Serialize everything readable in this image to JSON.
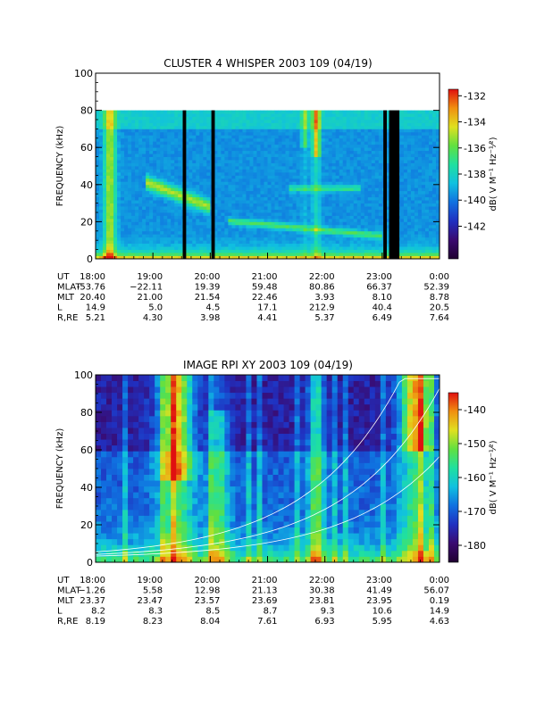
{
  "chart_data": [
    {
      "type": "heatmap",
      "title": "CLUSTER 4 WHISPER 2003 109 (04/19)",
      "ylabel": "FREQUENCY (kHz)",
      "ylim": [
        0,
        100
      ],
      "yticks": [
        "0",
        "20",
        "40",
        "60",
        "80",
        "100"
      ],
      "xlim_hours": [
        18,
        24
      ],
      "xticks": [
        "18:00",
        "19:00",
        "20:00",
        "21:00",
        "22:00",
        "23:00",
        "0:00"
      ],
      "data_ceiling_khz": 80,
      "colorbar": {
        "label": "dB( V M⁻¹ Hz⁻¹⁄²)",
        "ticks": [
          "-132",
          "-134",
          "-136",
          "-138",
          "-140",
          "-142"
        ],
        "tick_values": [
          -132,
          -134,
          -136,
          -138,
          -140,
          -142
        ],
        "range": [
          -144.5,
          -131.5
        ],
        "colors": [
          "#200030",
          "#3a0a70",
          "#2030c0",
          "#1070e0",
          "#10c0e0",
          "#20e0a0",
          "#60e040",
          "#e0e020",
          "#f09010",
          "#e01010"
        ]
      },
      "data_gaps_hours": [
        [
          19.52,
          19.58
        ],
        [
          20.02,
          20.08
        ],
        [
          23.02,
          23.08
        ],
        [
          23.12,
          23.3
        ]
      ],
      "ephemeris": {
        "rows": [
          {
            "label": "UT",
            "values": [
              "18:00",
              "19:00",
              "20:00",
              "21:00",
              "22:00",
              "23:00",
              "0:00"
            ]
          },
          {
            "label": "MLAT",
            "values": [
              "-53.76",
              "−22.11",
              "19.39",
              "59.48",
              "80.86",
              "66.37",
              "52.39"
            ]
          },
          {
            "label": "MLT",
            "values": [
              "20.40",
              "21.00",
              "21.54",
              "22.46",
              "3.93",
              "8.10",
              "8.78"
            ]
          },
          {
            "label": "L",
            "values": [
              "14.9",
              "5.0",
              "4.5",
              "17.1",
              "212.9",
              "40.4",
              "20.5"
            ]
          },
          {
            "label": "R,RE",
            "values": [
              "5.21",
              "4.30",
              "3.98",
              "4.41",
              "5.37",
              "6.49",
              "7.64"
            ]
          }
        ]
      }
    },
    {
      "type": "heatmap",
      "title": "IMAGE RPI XY 2003 109 (04/19)",
      "ylabel": "FREQUENCY (kHz)",
      "ylim": [
        0,
        100
      ],
      "yticks": [
        "0",
        "20",
        "40",
        "60",
        "80",
        "100"
      ],
      "xlim_hours": [
        18,
        24
      ],
      "xticks": [
        "18:00",
        "19:00",
        "20:00",
        "21:00",
        "22:00",
        "23:00",
        "0:00"
      ],
      "data_ceiling_khz": 100,
      "colorbar": {
        "label": "dB( V M⁻¹ Hz⁻¹⁄²)",
        "ticks": [
          "-140",
          "-150",
          "-160",
          "-170",
          "-180"
        ],
        "tick_values": [
          -140,
          -150,
          -160,
          -170,
          -180
        ],
        "range": [
          -185,
          -135
        ],
        "colors": [
          "#200030",
          "#3a0a70",
          "#2030c0",
          "#1070e0",
          "#10c0e0",
          "#20e0a0",
          "#60e040",
          "#e0e020",
          "#f09010",
          "#e01010"
        ]
      },
      "data_gaps_hours": [],
      "ephemeris": {
        "rows": [
          {
            "label": "UT",
            "values": [
              "18:00",
              "19:00",
              "20:00",
              "21:00",
              "22:00",
              "23:00",
              "0:00"
            ]
          },
          {
            "label": "MLAT",
            "values": [
              "−1.26",
              "5.58",
              "12.98",
              "21.13",
              "30.38",
              "41.49",
              "56.07"
            ]
          },
          {
            "label": "MLT",
            "values": [
              "23.37",
              "23.47",
              "23.57",
              "23.69",
              "23.81",
              "23.95",
              "0.19"
            ]
          },
          {
            "label": "L",
            "values": [
              "8.2",
              "8.3",
              "8.5",
              "8.7",
              "9.3",
              "10.6",
              "14.9"
            ]
          },
          {
            "label": "R,RE",
            "values": [
              "8.19",
              "8.23",
              "8.04",
              "7.61",
              "6.93",
              "5.95",
              "4.63"
            ]
          }
        ]
      }
    }
  ]
}
